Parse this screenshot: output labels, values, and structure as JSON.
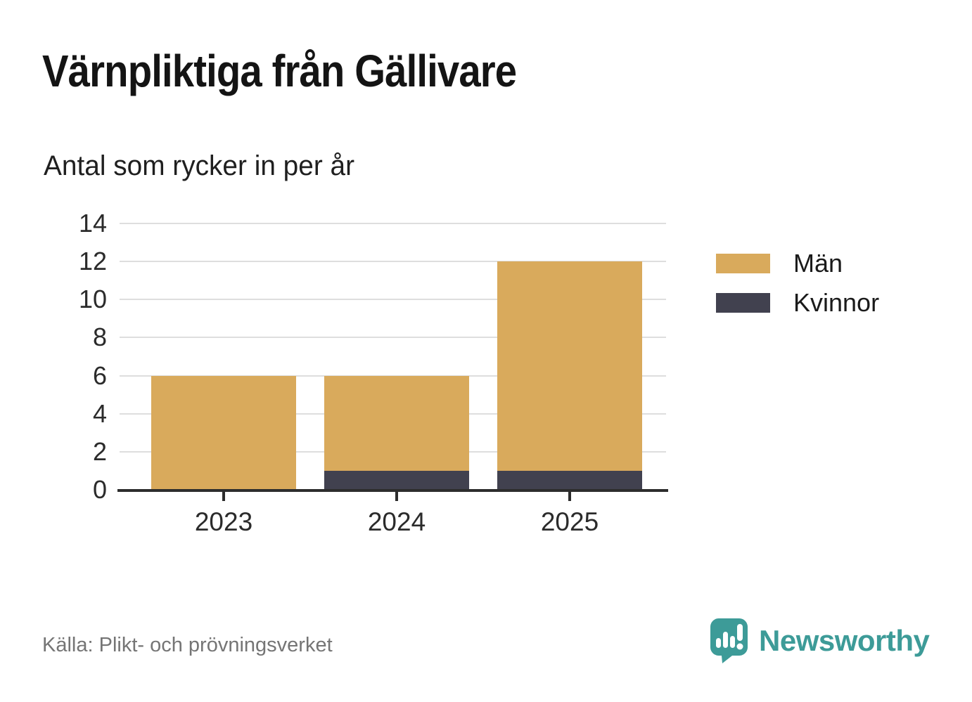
{
  "header": {
    "title": "Värnpliktiga från Gällivare",
    "subtitle": "Antal som rycker in per år"
  },
  "chart_data": {
    "type": "bar",
    "stacked": true,
    "title": "Värnpliktiga från Gällivare",
    "subtitle": "Antal som rycker in per år",
    "categories": [
      "2023",
      "2024",
      "2025"
    ],
    "series": [
      {
        "name": "Män",
        "color": "#d9aa5c",
        "values": [
          6,
          5,
          11
        ]
      },
      {
        "name": "Kvinnor",
        "color": "#41414f",
        "values": [
          0,
          1,
          1
        ]
      }
    ],
    "stack_order_bottom_to_top": [
      "Kvinnor",
      "Män"
    ],
    "totals": [
      6,
      6,
      12
    ],
    "xlabel": "",
    "ylabel": "",
    "ylim": [
      0,
      14
    ],
    "yticks": [
      0,
      2,
      4,
      6,
      8,
      10,
      12,
      14
    ],
    "grid": "horizontal",
    "gridline_color": "#dedede",
    "axis_color": "#2d2d2d",
    "legend_position": "right"
  },
  "footer": {
    "source": "Källa: Plikt- och prövningsverket",
    "brand": "Newsworthy",
    "brand_color": "#3d9b98"
  },
  "icons": {
    "brand": "bar-chart-speech-bubble-icon"
  }
}
